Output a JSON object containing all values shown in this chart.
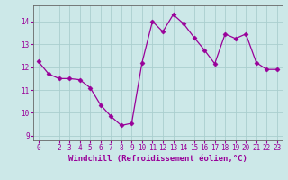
{
  "x": [
    0,
    1,
    2,
    3,
    4,
    5,
    6,
    7,
    8,
    9,
    10,
    11,
    12,
    13,
    14,
    15,
    16,
    17,
    18,
    19,
    20,
    21,
    22,
    23
  ],
  "y": [
    12.25,
    11.7,
    11.5,
    11.5,
    11.45,
    11.1,
    10.35,
    9.85,
    9.45,
    9.55,
    12.2,
    14.0,
    13.55,
    14.3,
    13.9,
    13.3,
    12.75,
    12.15,
    13.45,
    13.25,
    13.45,
    12.2,
    11.9,
    11.9
  ],
  "line_color": "#990099",
  "marker": "D",
  "markersize": 2.5,
  "linewidth": 0.9,
  "bg_color": "#cce8e8",
  "grid_color": "#aacece",
  "xlabel": "Windchill (Refroidissement éolien,°C)",
  "xlabel_color": "#990099",
  "xlabel_fontsize": 6.5,
  "tick_color": "#990099",
  "tick_fontsize": 5.5,
  "xlim": [
    -0.5,
    23.5
  ],
  "ylim": [
    8.8,
    14.7
  ],
  "yticks": [
    9,
    10,
    11,
    12,
    13,
    14
  ],
  "xticks": [
    0,
    2,
    3,
    4,
    5,
    6,
    7,
    8,
    9,
    10,
    11,
    12,
    13,
    14,
    15,
    16,
    17,
    18,
    19,
    20,
    21,
    22,
    23
  ]
}
